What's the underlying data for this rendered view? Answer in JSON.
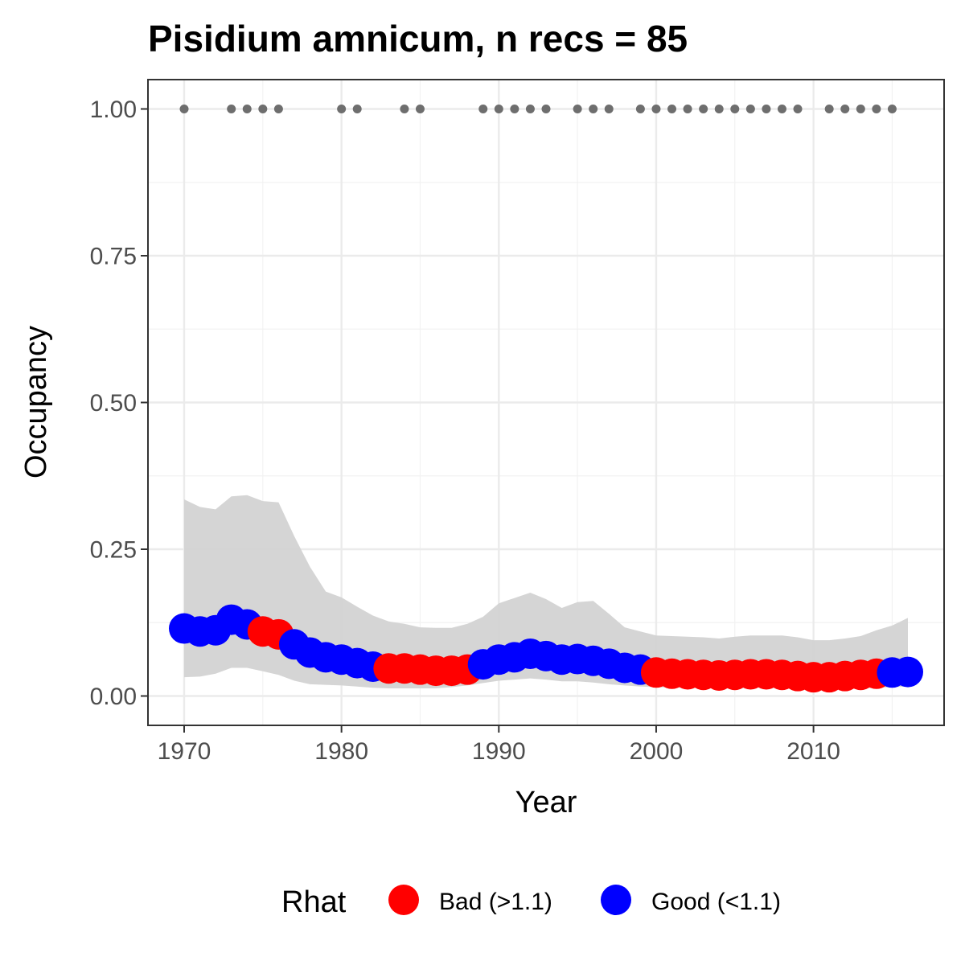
{
  "chart_data": {
    "type": "line",
    "title": "Pisidium amnicum, n recs = 85",
    "xlabel": "Year",
    "ylabel": "Occupancy",
    "xlim": [
      1967.7,
      2018.3
    ],
    "ylim": [
      -0.05,
      1.05
    ],
    "x_ticks": [
      1970,
      1980,
      1990,
      2000,
      2010
    ],
    "x_tick_labels": [
      "1970",
      "1980",
      "1990",
      "2000",
      "2010"
    ],
    "y_ticks": [
      0,
      0.25,
      0.5,
      0.75,
      1.0
    ],
    "y_tick_labels": [
      "0.00",
      "0.25",
      "0.50",
      "0.75",
      "1.00"
    ],
    "grid": true,
    "legend": {
      "title": "Rhat",
      "position": "bottom",
      "entries": [
        {
          "label": "Bad (>1.1)",
          "color": "#ff0000"
        },
        {
          "label": "Good (<1.1)",
          "color": "#0000ff"
        }
      ]
    },
    "colors": {
      "bad": "#ff0000",
      "good": "#0000ff",
      "ribbon": "#d3d3d3",
      "records": "#6e6e6e"
    },
    "years": [
      1970,
      1971,
      1972,
      1973,
      1974,
      1975,
      1976,
      1977,
      1978,
      1979,
      1980,
      1981,
      1982,
      1983,
      1984,
      1985,
      1986,
      1987,
      1988,
      1989,
      1990,
      1991,
      1992,
      1993,
      1994,
      1995,
      1996,
      1997,
      1998,
      1999,
      2000,
      2001,
      2002,
      2003,
      2004,
      2005,
      2006,
      2007,
      2008,
      2009,
      2010,
      2011,
      2012,
      2013,
      2014,
      2015,
      2016
    ],
    "occupancy": [
      0.115,
      0.11,
      0.112,
      0.13,
      0.122,
      0.11,
      0.105,
      0.088,
      0.074,
      0.066,
      0.062,
      0.056,
      0.05,
      0.047,
      0.047,
      0.045,
      0.043,
      0.043,
      0.045,
      0.054,
      0.062,
      0.066,
      0.072,
      0.068,
      0.062,
      0.063,
      0.06,
      0.055,
      0.048,
      0.045,
      0.04,
      0.038,
      0.037,
      0.036,
      0.035,
      0.036,
      0.037,
      0.037,
      0.036,
      0.034,
      0.032,
      0.032,
      0.034,
      0.036,
      0.038,
      0.04,
      0.041
    ],
    "rhat": [
      "Good",
      "Good",
      "Good",
      "Good",
      "Good",
      "Bad",
      "Bad",
      "Good",
      "Good",
      "Good",
      "Good",
      "Good",
      "Good",
      "Bad",
      "Bad",
      "Bad",
      "Bad",
      "Bad",
      "Bad",
      "Good",
      "Good",
      "Good",
      "Good",
      "Good",
      "Good",
      "Good",
      "Good",
      "Good",
      "Good",
      "Good",
      "Bad",
      "Bad",
      "Bad",
      "Bad",
      "Bad",
      "Bad",
      "Bad",
      "Bad",
      "Bad",
      "Bad",
      "Bad",
      "Bad",
      "Bad",
      "Bad",
      "Bad",
      "Good",
      "Good"
    ],
    "lower": [
      0.032,
      0.033,
      0.038,
      0.048,
      0.048,
      0.042,
      0.036,
      0.026,
      0.02,
      0.019,
      0.018,
      0.016,
      0.014,
      0.013,
      0.013,
      0.013,
      0.013,
      0.015,
      0.018,
      0.022,
      0.026,
      0.028,
      0.03,
      0.028,
      0.025,
      0.025,
      0.023,
      0.02,
      0.018,
      0.016,
      0.015,
      0.014,
      0.014,
      0.013,
      0.013,
      0.013,
      0.014,
      0.014,
      0.013,
      0.013,
      0.012,
      0.012,
      0.012,
      0.013,
      0.014,
      0.015,
      0.016
    ],
    "upper": [
      0.335,
      0.322,
      0.318,
      0.34,
      0.342,
      0.332,
      0.33,
      0.272,
      0.22,
      0.178,
      0.168,
      0.152,
      0.137,
      0.127,
      0.123,
      0.117,
      0.116,
      0.116,
      0.123,
      0.135,
      0.158,
      0.167,
      0.176,
      0.165,
      0.15,
      0.16,
      0.162,
      0.14,
      0.117,
      0.11,
      0.103,
      0.102,
      0.101,
      0.1,
      0.098,
      0.101,
      0.103,
      0.103,
      0.103,
      0.1,
      0.095,
      0.095,
      0.098,
      0.102,
      0.112,
      0.12,
      0.133
    ],
    "record_years": [
      1970,
      1973,
      1974,
      1975,
      1976,
      1980,
      1981,
      1984,
      1985,
      1989,
      1990,
      1991,
      1992,
      1993,
      1995,
      1996,
      1997,
      1999,
      2000,
      2001,
      2002,
      2003,
      2004,
      2005,
      2006,
      2007,
      2008,
      2009,
      2011,
      2012,
      2013,
      2014,
      2015
    ],
    "record_value": 1.0
  }
}
